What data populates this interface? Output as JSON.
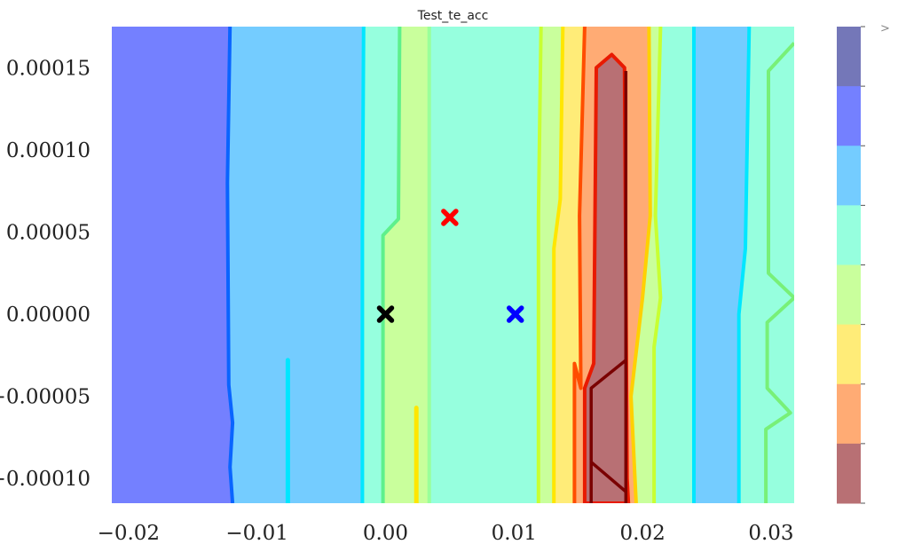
{
  "chart_data": {
    "type": "heatmap",
    "title": "Test_te_acc",
    "xlabel": "",
    "ylabel": "",
    "xlim": [
      -0.0213,
      0.0318
    ],
    "ylim": [
      -0.000115,
      0.000175
    ],
    "xticks": [
      -0.02,
      -0.01,
      0.0,
      0.01,
      0.02,
      0.03
    ],
    "xtick_labels": [
      "−0.02",
      "−0.01",
      "0.00",
      "0.01",
      "0.02",
      "0.03"
    ],
    "yticks": [
      0.00015,
      0.0001,
      5e-05,
      0.0,
      -5e-05,
      -0.0001
    ],
    "ytick_labels": [
      "0.00015",
      "0.00010",
      "0.00005",
      "0.00000",
      "−0.00005",
      "−0.00010"
    ],
    "grid": false,
    "colorbar": {
      "placement": "right",
      "level_colors": [
        "#7477b8",
        "#7480ff",
        "#74ccff",
        "#96ffde",
        "#c9ff9c",
        "#ffec78",
        "#ffab74",
        "#b87074"
      ],
      "tick_labels": [],
      "top_mark": ">"
    },
    "contour_bands": [
      {
        "color": "#7480ff",
        "left": [
          [
            -0.0213,
            -0.000115
          ],
          [
            -0.0213,
            0.000175
          ]
        ],
        "right": [
          [
            -0.0119,
            -0.000115
          ],
          [
            -0.0121,
            -9.3e-05
          ],
          [
            -0.0119,
            -6.6e-05
          ],
          [
            -0.0122,
            -4.3e-05
          ],
          [
            -0.0123,
            8e-05
          ],
          [
            -0.0121,
            0.000175
          ]
        ],
        "line": "#0a64ff"
      },
      {
        "color": "#74ccff",
        "right": [
          [
            -0.0018,
            -0.000115
          ],
          [
            -0.0018,
            5e-05
          ],
          [
            -0.0017,
            0.000175
          ]
        ],
        "line": "#00e6ff"
      },
      {
        "color": "#96ffde",
        "right": [
          [
            -0.0002,
            -0.000115
          ],
          [
            -0.0002,
            4.8e-05
          ],
          [
            0.001,
            5.8e-05
          ],
          [
            0.0011,
            0.000175
          ]
        ],
        "line": "#5ef08c"
      },
      {
        "color": "#c9ff9c",
        "right": [
          [
            0.0034,
            -0.000115
          ],
          [
            0.0034,
            0.000175
          ]
        ],
        "line": "#9aff9a"
      },
      {
        "color": "#96ffde",
        "right": [
          [
            0.0119,
            -0.000115
          ],
          [
            0.0119,
            6e-05
          ],
          [
            0.0121,
            0.000175
          ]
        ],
        "line": "#c8ff32"
      },
      {
        "color": "#c9ff9c",
        "right": [
          [
            0.0131,
            -0.000115
          ],
          [
            0.0131,
            4e-05
          ],
          [
            0.0136,
            7e-05
          ],
          [
            0.0138,
            0.000175
          ]
        ],
        "line": "#ffe600"
      },
      {
        "color": "#ffec78",
        "right": [
          [
            0.0147,
            -0.000115
          ],
          [
            0.0147,
            -3e-05
          ],
          [
            0.0152,
            -4.5e-05
          ],
          [
            0.0151,
            6e-05
          ],
          [
            0.0155,
            0.000175
          ]
        ],
        "line": "#ff4d00"
      },
      {
        "color": "#ffab74",
        "right": [
          [
            0.0195,
            -0.000115
          ],
          [
            0.0191,
            -5e-05
          ],
          [
            0.02,
            1e-05
          ],
          [
            0.0206,
            6e-05
          ],
          [
            0.0205,
            0.000175
          ]
        ],
        "line": "#ffd000"
      },
      {
        "color": "#c9ff9c",
        "right": [
          [
            0.0209,
            -0.000115
          ],
          [
            0.0209,
            -2e-05
          ],
          [
            0.0214,
            1e-05
          ],
          [
            0.021,
            6e-05
          ],
          [
            0.0214,
            0.000175
          ]
        ],
        "line": "#c8ff32"
      },
      {
        "color": "#96ffde",
        "right": [
          [
            0.024,
            -0.000115
          ],
          [
            0.024,
            0.000175
          ]
        ],
        "line": "#00e6ff"
      },
      {
        "color": "#74ccff",
        "right": [
          [
            0.0275,
            -0.000115
          ],
          [
            0.0275,
            0.0
          ],
          [
            0.028,
            4e-05
          ],
          [
            0.0283,
            0.000175
          ]
        ],
        "line": "#00e6ff"
      },
      {
        "color": "#96ffde",
        "right": [
          [
            0.0296,
            -0.000115
          ],
          [
            0.0296,
            -7e-05
          ],
          [
            0.0315,
            -6e-05
          ],
          [
            0.0297,
            -4.5e-05
          ],
          [
            0.0297,
            -5e-06
          ],
          [
            0.0318,
            1e-05
          ],
          [
            0.0298,
            2.5e-05
          ],
          [
            0.0298,
            0.000148
          ],
          [
            0.0318,
            0.000165
          ]
        ],
        "line": "#78f078"
      }
    ],
    "inner_peak": {
      "color": "#b87074",
      "outline": [
        [
          0.0155,
          -0.000115
        ],
        [
          0.0155,
          -4.5e-05
        ],
        [
          0.0162,
          -3e-05
        ],
        [
          0.0164,
          0.00015
        ],
        [
          0.0176,
          0.000158
        ],
        [
          0.0186,
          0.00015
        ],
        [
          0.0188,
          -0.0001
        ],
        [
          0.0189,
          -0.000115
        ]
      ],
      "line": "#e81a00",
      "core_lines": [
        [
          [
            0.0187,
            -0.000115
          ],
          [
            0.0187,
            0.000148
          ]
        ],
        [
          [
            0.016,
            -0.000115
          ],
          [
            0.016,
            -4.5e-05
          ],
          [
            0.0187,
            -2.8e-05
          ]
        ],
        [
          [
            0.016,
            -9e-05
          ],
          [
            0.0187,
            -0.000108
          ]
        ]
      ],
      "core_color": "#7a0000"
    },
    "stray_lines": [
      {
        "points": [
          [
            -0.0076,
            -0.000115
          ],
          [
            -0.0076,
            -2.8e-05
          ]
        ],
        "color": "#00e6ff"
      },
      {
        "points": [
          [
            0.0024,
            -0.000115
          ],
          [
            0.0024,
            -5.7e-05
          ]
        ],
        "color": "#ffe600"
      }
    ],
    "markers": [
      {
        "name": "origin",
        "x": 0.0,
        "y": 0.0,
        "color": "#000000",
        "symbol": "X"
      },
      {
        "name": "red-point",
        "x": 0.005,
        "y": 5.89e-05,
        "color": "#ff0000",
        "symbol": "X"
      },
      {
        "name": "blue-point",
        "x": 0.0101,
        "y": 0.0,
        "color": "#0000ff",
        "symbol": "X"
      }
    ]
  }
}
